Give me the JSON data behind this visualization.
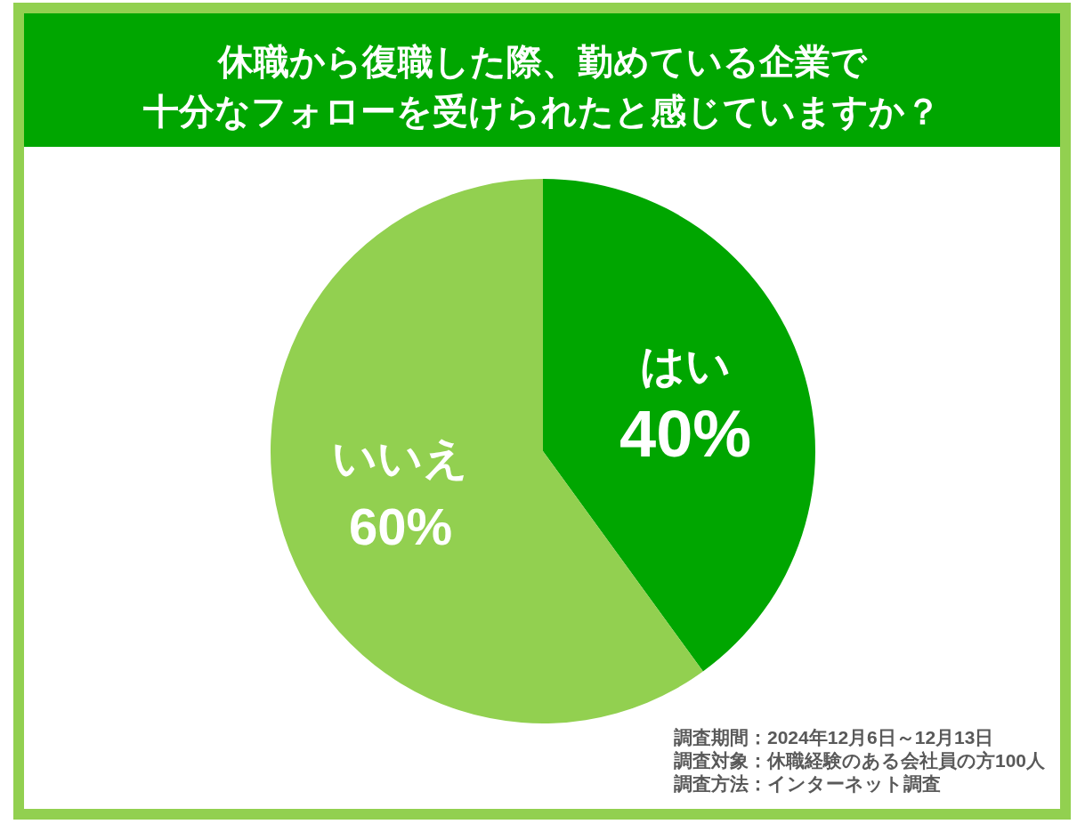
{
  "chart_data": {
    "type": "pie",
    "title": "休職から復職した際、勤めている企業で十分なフォローを受けられたと感じていますか？",
    "categories": [
      "はい",
      "いいえ"
    ],
    "values": [
      40,
      60
    ],
    "colors": [
      "#00a600",
      "#92d050"
    ],
    "value_labels": [
      "40%",
      "60%"
    ],
    "annotations": [
      "調査期間：2024年12月6日～12月13日",
      "調査対象：休職経験のある会社員の方100人",
      "調査方法：インターネット調査"
    ],
    "legend": false
  }
}
